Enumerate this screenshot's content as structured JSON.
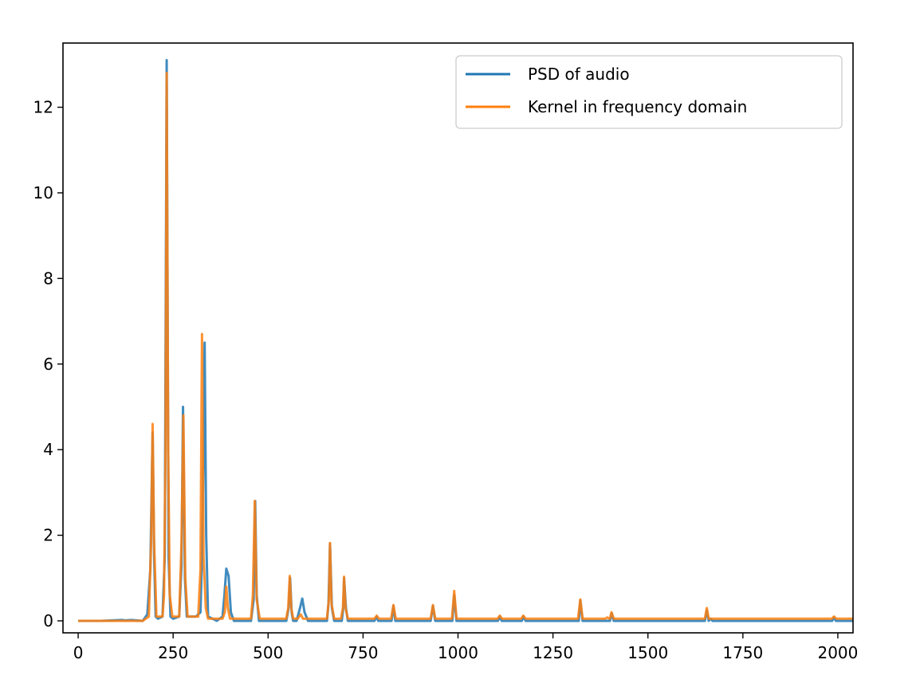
{
  "chart_data": {
    "type": "line",
    "title": "",
    "xlabel": "",
    "ylabel": "",
    "xlim": [
      -40,
      2040
    ],
    "ylim": [
      -0.28,
      13.5
    ],
    "xticks": [
      0,
      250,
      500,
      750,
      1000,
      1250,
      1500,
      1750,
      2000
    ],
    "yticks": [
      0,
      2,
      4,
      6,
      8,
      10,
      12
    ],
    "legend_position": "top-right",
    "grid": false,
    "series": [
      {
        "name": "PSD of audio",
        "color": "#1f77b4",
        "points": [
          [
            0,
            0
          ],
          [
            60,
            0
          ],
          [
            115,
            0.02
          ],
          [
            125,
            0.01
          ],
          [
            140,
            0.02
          ],
          [
            170,
            0
          ],
          [
            182,
            0.15
          ],
          [
            190,
            1.2
          ],
          [
            196,
            4.4
          ],
          [
            200,
            1.5
          ],
          [
            204,
            0.1
          ],
          [
            210,
            0.05
          ],
          [
            222,
            0.1
          ],
          [
            228,
            1.5
          ],
          [
            233,
            13.1
          ],
          [
            238,
            1.5
          ],
          [
            243,
            0.1
          ],
          [
            250,
            0.05
          ],
          [
            266,
            0.1
          ],
          [
            272,
            1.3
          ],
          [
            276,
            5.0
          ],
          [
            281,
            1.0
          ],
          [
            286,
            0.1
          ],
          [
            310,
            0.1
          ],
          [
            322,
            0.2
          ],
          [
            326,
            1.5
          ],
          [
            330,
            4.0
          ],
          [
            333,
            6.5
          ],
          [
            337,
            2.0
          ],
          [
            342,
            0.1
          ],
          [
            365,
            0
          ],
          [
            380,
            0.1
          ],
          [
            385,
            0.6
          ],
          [
            390,
            1.22
          ],
          [
            396,
            1.05
          ],
          [
            402,
            0.2
          ],
          [
            410,
            0
          ],
          [
            455,
            0
          ],
          [
            462,
            0.5
          ],
          [
            466,
            2.8
          ],
          [
            470,
            0.6
          ],
          [
            476,
            0
          ],
          [
            500,
            0
          ],
          [
            548,
            0
          ],
          [
            554,
            0.3
          ],
          [
            558,
            1.0
          ],
          [
            562,
            0.2
          ],
          [
            566,
            0
          ],
          [
            575,
            0
          ],
          [
            584,
            0.3
          ],
          [
            590,
            0.52
          ],
          [
            596,
            0.2
          ],
          [
            605,
            0
          ],
          [
            655,
            0
          ],
          [
            659,
            0.4
          ],
          [
            663,
            1.8
          ],
          [
            668,
            0.3
          ],
          [
            674,
            0
          ],
          [
            694,
            0
          ],
          [
            698,
            0.3
          ],
          [
            700,
            1.0
          ],
          [
            705,
            0.3
          ],
          [
            710,
            0
          ],
          [
            780,
            0
          ],
          [
            786,
            0.1
          ],
          [
            790,
            0
          ],
          [
            825,
            0
          ],
          [
            830,
            0.35
          ],
          [
            835,
            0
          ],
          [
            928,
            0
          ],
          [
            934,
            0.35
          ],
          [
            940,
            0
          ],
          [
            985,
            0
          ],
          [
            990,
            0.6
          ],
          [
            996,
            0
          ],
          [
            1105,
            0
          ],
          [
            1110,
            0.1
          ],
          [
            1115,
            0
          ],
          [
            1168,
            0
          ],
          [
            1172,
            0.1
          ],
          [
            1178,
            0
          ],
          [
            1318,
            0
          ],
          [
            1322,
            0.48
          ],
          [
            1328,
            0
          ],
          [
            1400,
            0
          ],
          [
            1405,
            0.18
          ],
          [
            1410,
            0
          ],
          [
            1650,
            0
          ],
          [
            1655,
            0.25
          ],
          [
            1660,
            0
          ],
          [
            1665,
            0.05
          ],
          [
            1670,
            0
          ],
          [
            1985,
            0
          ],
          [
            1990,
            0.08
          ],
          [
            1995,
            0
          ],
          [
            2040,
            0
          ]
        ]
      },
      {
        "name": "Kernel in frequency domain",
        "color": "#ff7f0e",
        "points": [
          [
            0,
            0
          ],
          [
            60,
            0
          ],
          [
            170,
            0
          ],
          [
            186,
            0.1
          ],
          [
            192,
            1.8
          ],
          [
            196,
            4.6
          ],
          [
            200,
            1.8
          ],
          [
            206,
            0.1
          ],
          [
            222,
            0.1
          ],
          [
            226,
            0.6
          ],
          [
            230,
            4.0
          ],
          [
            233,
            12.8
          ],
          [
            237,
            4.0
          ],
          [
            241,
            0.6
          ],
          [
            248,
            0.1
          ],
          [
            266,
            0.1
          ],
          [
            272,
            1.8
          ],
          [
            277,
            4.8
          ],
          [
            282,
            1.0
          ],
          [
            288,
            0.1
          ],
          [
            316,
            0.1
          ],
          [
            322,
            1.2
          ],
          [
            326,
            6.7
          ],
          [
            330,
            1.5
          ],
          [
            336,
            0.3
          ],
          [
            342,
            0.05
          ],
          [
            380,
            0.05
          ],
          [
            386,
            0.2
          ],
          [
            390,
            0.8
          ],
          [
            394,
            0.3
          ],
          [
            400,
            0.05
          ],
          [
            455,
            0.05
          ],
          [
            460,
            0.6
          ],
          [
            465,
            2.8
          ],
          [
            470,
            0.5
          ],
          [
            478,
            0.05
          ],
          [
            548,
            0.05
          ],
          [
            553,
            0.3
          ],
          [
            557,
            1.05
          ],
          [
            561,
            0.3
          ],
          [
            566,
            0.05
          ],
          [
            578,
            0.05
          ],
          [
            586,
            0.15
          ],
          [
            592,
            0.05
          ],
          [
            655,
            0.05
          ],
          [
            660,
            0.5
          ],
          [
            663,
            1.82
          ],
          [
            667,
            0.4
          ],
          [
            674,
            0.05
          ],
          [
            692,
            0.05
          ],
          [
            697,
            0.3
          ],
          [
            700,
            1.03
          ],
          [
            704,
            0.3
          ],
          [
            710,
            0.05
          ],
          [
            780,
            0.05
          ],
          [
            786,
            0.12
          ],
          [
            792,
            0.05
          ],
          [
            824,
            0.05
          ],
          [
            830,
            0.37
          ],
          [
            836,
            0.05
          ],
          [
            928,
            0.05
          ],
          [
            934,
            0.37
          ],
          [
            940,
            0.05
          ],
          [
            984,
            0.05
          ],
          [
            990,
            0.7
          ],
          [
            996,
            0.05
          ],
          [
            1104,
            0.05
          ],
          [
            1110,
            0.12
          ],
          [
            1116,
            0.05
          ],
          [
            1166,
            0.05
          ],
          [
            1172,
            0.12
          ],
          [
            1178,
            0.05
          ],
          [
            1316,
            0.05
          ],
          [
            1322,
            0.5
          ],
          [
            1328,
            0.05
          ],
          [
            1388,
            0.05
          ],
          [
            1393,
            0.08
          ],
          [
            1398,
            0.05
          ],
          [
            1400,
            0.05
          ],
          [
            1404,
            0.2
          ],
          [
            1410,
            0.05
          ],
          [
            1650,
            0.05
          ],
          [
            1655,
            0.3
          ],
          [
            1660,
            0.05
          ],
          [
            1984,
            0.05
          ],
          [
            1990,
            0.1
          ],
          [
            1996,
            0.05
          ],
          [
            2040,
            0.05
          ]
        ]
      }
    ]
  }
}
